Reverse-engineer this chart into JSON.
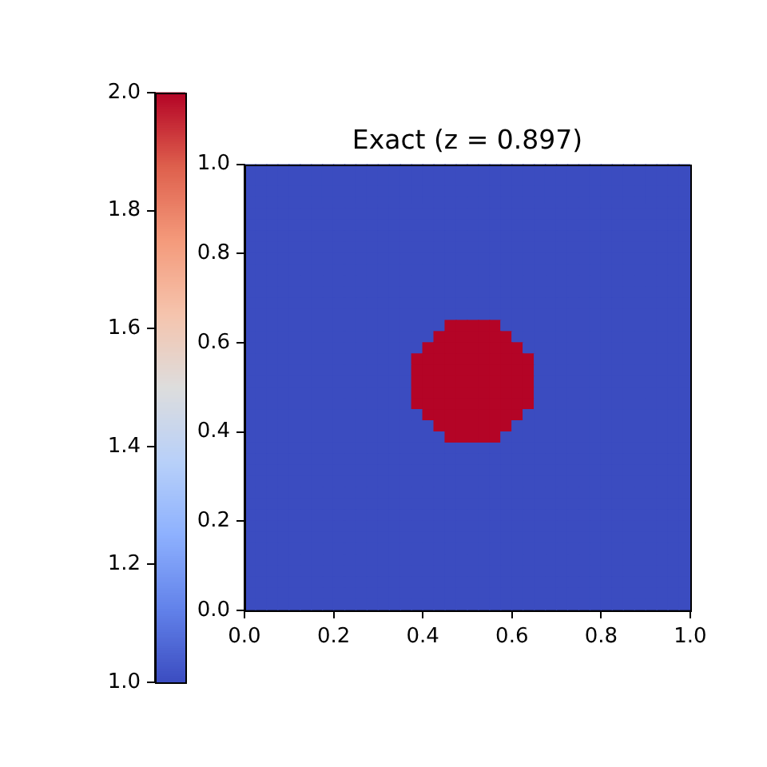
{
  "chart_data": {
    "type": "heatmap",
    "title": "Exact (z = 0.897)",
    "x": [
      0.0125,
      0.0375,
      0.0625,
      0.0875,
      0.1125,
      0.1375,
      0.1625,
      0.1875,
      0.2125,
      0.2375,
      0.2625,
      0.2875,
      0.3125,
      0.3375,
      0.3625,
      0.3875,
      0.4125,
      0.4375,
      0.4625,
      0.4875,
      0.5125,
      0.5375,
      0.5625,
      0.5875,
      0.6125,
      0.6375,
      0.6625,
      0.6875,
      0.7125,
      0.7375,
      0.7625,
      0.7875,
      0.8125,
      0.8375,
      0.8625,
      0.8875,
      0.9125,
      0.9375,
      0.9625,
      0.9875
    ],
    "xlim": [
      0,
      1
    ],
    "xticks": [
      {
        "value": 0,
        "label": "0.0"
      },
      0.2,
      0.4,
      0.6,
      0.8,
      {
        "value": 1,
        "label": "1.0"
      }
    ],
    "ylim": [
      0,
      1
    ],
    "yticks": [
      {
        "value": 0,
        "label": "0.0"
      },
      0.2,
      0.4,
      0.6,
      0.8,
      {
        "value": 1,
        "label": "1.0"
      }
    ],
    "clim": [
      1,
      2
    ],
    "cticks": [
      {
        "value": 1,
        "label": "1.0"
      },
      1.2,
      1.4,
      1.6,
      1.8,
      {
        "value": 2,
        "label": "2.0"
      }
    ],
    "cells": [
      [
        1,
        1,
        1,
        1,
        1,
        1,
        1,
        1,
        1,
        1,
        1,
        1,
        1,
        1,
        1,
        1,
        1,
        1,
        1,
        1,
        1,
        1,
        1,
        1,
        1,
        1,
        1,
        1,
        1,
        1,
        1,
        1,
        1,
        1,
        1,
        1,
        1,
        1,
        1,
        1
      ],
      [
        1,
        1,
        1,
        1,
        1,
        1,
        1,
        1,
        1,
        1,
        1,
        1,
        1,
        1,
        1,
        1,
        1,
        1,
        1,
        1,
        1,
        1,
        1,
        1,
        1,
        1,
        1,
        1,
        1,
        1,
        1,
        1,
        1,
        1,
        1,
        1,
        1,
        1,
        1,
        1
      ],
      [
        1,
        1,
        1,
        1,
        1,
        1,
        1,
        1,
        1,
        1,
        1,
        1,
        1,
        1,
        1,
        1,
        1,
        1,
        1,
        1,
        1,
        1,
        1,
        1,
        1,
        1,
        1,
        1,
        1,
        1,
        1,
        1,
        1,
        1,
        1,
        1,
        1,
        1,
        1,
        1
      ],
      [
        1,
        1,
        1,
        1,
        1,
        1,
        1,
        1,
        1,
        1,
        1,
        1,
        1,
        1,
        1,
        1,
        1,
        1,
        1,
        1,
        1,
        1,
        1,
        1,
        1,
        1,
        1,
        1,
        1,
        1,
        1,
        1,
        1,
        1,
        1,
        1,
        1,
        1,
        1,
        1
      ],
      [
        1,
        1,
        1,
        1,
        1,
        1,
        1,
        1,
        1,
        1,
        1,
        1,
        1,
        1,
        1,
        1,
        1,
        1,
        1,
        1,
        1,
        1,
        1,
        1,
        1,
        1,
        1,
        1,
        1,
        1,
        1,
        1,
        1,
        1,
        1,
        1,
        1,
        1,
        1,
        1
      ],
      [
        1,
        1,
        1,
        1,
        1,
        1,
        1,
        1,
        1,
        1,
        1,
        1,
        1,
        1,
        1,
        1,
        1,
        1,
        1,
        1,
        1,
        1,
        1,
        1,
        1,
        1,
        1,
        1,
        1,
        1,
        1,
        1,
        1,
        1,
        1,
        1,
        1,
        1,
        1,
        1
      ],
      [
        1,
        1,
        1,
        1,
        1,
        1,
        1,
        1,
        1,
        1,
        1,
        1,
        1,
        1,
        1,
        1,
        1,
        1,
        1,
        1,
        1,
        1,
        1,
        1,
        1,
        1,
        1,
        1,
        1,
        1,
        1,
        1,
        1,
        1,
        1,
        1,
        1,
        1,
        1,
        1
      ],
      [
        1,
        1,
        1,
        1,
        1,
        1,
        1,
        1,
        1,
        1,
        1,
        1,
        1,
        1,
        1,
        1,
        1,
        1,
        1,
        1,
        1,
        1,
        1,
        1,
        1,
        1,
        1,
        1,
        1,
        1,
        1,
        1,
        1,
        1,
        1,
        1,
        1,
        1,
        1,
        1
      ],
      [
        1,
        1,
        1,
        1,
        1,
        1,
        1,
        1,
        1,
        1,
        1,
        1,
        1,
        1,
        1,
        1,
        1,
        1,
        1,
        1,
        1,
        1,
        1,
        1,
        1,
        1,
        1,
        1,
        1,
        1,
        1,
        1,
        1,
        1,
        1,
        1,
        1,
        1,
        1,
        1
      ],
      [
        1,
        1,
        1,
        1,
        1,
        1,
        1,
        1,
        1,
        1,
        1,
        1,
        1,
        1,
        1,
        1,
        1,
        1,
        1,
        1,
        1,
        1,
        1,
        1,
        1,
        1,
        1,
        1,
        1,
        1,
        1,
        1,
        1,
        1,
        1,
        1,
        1,
        1,
        1,
        1
      ],
      [
        1,
        1,
        1,
        1,
        1,
        1,
        1,
        1,
        1,
        1,
        1,
        1,
        1,
        1,
        1,
        1,
        1,
        1,
        1,
        1,
        1,
        1,
        1,
        1,
        1,
        1,
        1,
        1,
        1,
        1,
        1,
        1,
        1,
        1,
        1,
        1,
        1,
        1,
        1,
        1
      ],
      [
        1,
        1,
        1,
        1,
        1,
        1,
        1,
        1,
        1,
        1,
        1,
        1,
        1,
        1,
        1,
        1,
        1,
        1,
        1,
        1,
        1,
        1,
        1,
        1,
        1,
        1,
        1,
        1,
        1,
        1,
        1,
        1,
        1,
        1,
        1,
        1,
        1,
        1,
        1,
        1
      ],
      [
        1,
        1,
        1,
        1,
        1,
        1,
        1,
        1,
        1,
        1,
        1,
        1,
        1,
        1,
        1,
        1,
        1,
        1,
        1,
        1,
        1,
        1,
        1,
        1,
        1,
        1,
        1,
        1,
        1,
        1,
        1,
        1,
        1,
        1,
        1,
        1,
        1,
        1,
        1,
        1
      ],
      [
        1,
        1,
        1,
        1,
        1,
        1,
        1,
        1,
        1,
        1,
        1,
        1,
        1,
        1,
        1,
        1,
        1,
        1,
        1,
        1,
        1,
        1,
        1,
        1,
        1,
        1,
        1,
        1,
        1,
        1,
        1,
        1,
        1,
        1,
        1,
        1,
        1,
        1,
        1,
        1
      ],
      [
        1,
        1,
        1,
        1,
        1,
        1,
        1,
        1,
        1,
        1,
        1,
        1,
        1,
        1,
        1,
        1,
        1,
        1,
        2,
        2,
        2,
        2,
        2,
        1,
        1,
        1,
        1,
        1,
        1,
        1,
        1,
        1,
        1,
        1,
        1,
        1,
        1,
        1,
        1,
        1
      ],
      [
        1,
        1,
        1,
        1,
        1,
        1,
        1,
        1,
        1,
        1,
        1,
        1,
        1,
        1,
        1,
        1,
        1,
        2,
        2,
        2,
        2,
        2,
        2,
        2,
        1,
        1,
        1,
        1,
        1,
        1,
        1,
        1,
        1,
        1,
        1,
        1,
        1,
        1,
        1,
        1
      ],
      [
        1,
        1,
        1,
        1,
        1,
        1,
        1,
        1,
        1,
        1,
        1,
        1,
        1,
        1,
        1,
        1,
        2,
        2,
        2,
        2,
        2,
        2,
        2,
        2,
        2,
        1,
        1,
        1,
        1,
        1,
        1,
        1,
        1,
        1,
        1,
        1,
        1,
        1,
        1,
        1
      ],
      [
        1,
        1,
        1,
        1,
        1,
        1,
        1,
        1,
        1,
        1,
        1,
        1,
        1,
        1,
        1,
        2,
        2,
        2,
        2,
        2,
        2,
        2,
        2,
        2,
        2,
        2,
        1,
        1,
        1,
        1,
        1,
        1,
        1,
        1,
        1,
        1,
        1,
        1,
        1,
        1
      ],
      [
        1,
        1,
        1,
        1,
        1,
        1,
        1,
        1,
        1,
        1,
        1,
        1,
        1,
        1,
        1,
        2,
        2,
        2,
        2,
        2,
        2,
        2,
        2,
        2,
        2,
        2,
        1,
        1,
        1,
        1,
        1,
        1,
        1,
        1,
        1,
        1,
        1,
        1,
        1,
        1
      ],
      [
        1,
        1,
        1,
        1,
        1,
        1,
        1,
        1,
        1,
        1,
        1,
        1,
        1,
        1,
        1,
        2,
        2,
        2,
        2,
        2,
        2,
        2,
        2,
        2,
        2,
        2,
        1,
        1,
        1,
        1,
        1,
        1,
        1,
        1,
        1,
        1,
        1,
        1,
        1,
        1
      ],
      [
        1,
        1,
        1,
        1,
        1,
        1,
        1,
        1,
        1,
        1,
        1,
        1,
        1,
        1,
        1,
        2,
        2,
        2,
        2,
        2,
        2,
        2,
        2,
        2,
        2,
        2,
        1,
        1,
        1,
        1,
        1,
        1,
        1,
        1,
        1,
        1,
        1,
        1,
        1,
        1
      ],
      [
        1,
        1,
        1,
        1,
        1,
        1,
        1,
        1,
        1,
        1,
        1,
        1,
        1,
        1,
        1,
        2,
        2,
        2,
        2,
        2,
        2,
        2,
        2,
        2,
        2,
        2,
        1,
        1,
        1,
        1,
        1,
        1,
        1,
        1,
        1,
        1,
        1,
        1,
        1,
        1
      ],
      [
        1,
        1,
        1,
        1,
        1,
        1,
        1,
        1,
        1,
        1,
        1,
        1,
        1,
        1,
        1,
        1,
        2,
        2,
        2,
        2,
        2,
        2,
        2,
        2,
        2,
        1,
        1,
        1,
        1,
        1,
        1,
        1,
        1,
        1,
        1,
        1,
        1,
        1,
        1,
        1
      ],
      [
        1,
        1,
        1,
        1,
        1,
        1,
        1,
        1,
        1,
        1,
        1,
        1,
        1,
        1,
        1,
        1,
        1,
        2,
        2,
        2,
        2,
        2,
        2,
        2,
        1,
        1,
        1,
        1,
        1,
        1,
        1,
        1,
        1,
        1,
        1,
        1,
        1,
        1,
        1,
        1
      ],
      [
        1,
        1,
        1,
        1,
        1,
        1,
        1,
        1,
        1,
        1,
        1,
        1,
        1,
        1,
        1,
        1,
        1,
        1,
        2,
        2,
        2,
        2,
        2,
        1,
        1,
        1,
        1,
        1,
        1,
        1,
        1,
        1,
        1,
        1,
        1,
        1,
        1,
        1,
        1,
        1
      ],
      [
        1,
        1,
        1,
        1,
        1,
        1,
        1,
        1,
        1,
        1,
        1,
        1,
        1,
        1,
        1,
        1,
        1,
        1,
        1,
        1,
        1,
        1,
        1,
        1,
        1,
        1,
        1,
        1,
        1,
        1,
        1,
        1,
        1,
        1,
        1,
        1,
        1,
        1,
        1,
        1
      ],
      [
        1,
        1,
        1,
        1,
        1,
        1,
        1,
        1,
        1,
        1,
        1,
        1,
        1,
        1,
        1,
        1,
        1,
        1,
        1,
        1,
        1,
        1,
        1,
        1,
        1,
        1,
        1,
        1,
        1,
        1,
        1,
        1,
        1,
        1,
        1,
        1,
        1,
        1,
        1,
        1
      ],
      [
        1,
        1,
        1,
        1,
        1,
        1,
        1,
        1,
        1,
        1,
        1,
        1,
        1,
        1,
        1,
        1,
        1,
        1,
        1,
        1,
        1,
        1,
        1,
        1,
        1,
        1,
        1,
        1,
        1,
        1,
        1,
        1,
        1,
        1,
        1,
        1,
        1,
        1,
        1,
        1
      ],
      [
        1,
        1,
        1,
        1,
        1,
        1,
        1,
        1,
        1,
        1,
        1,
        1,
        1,
        1,
        1,
        1,
        1,
        1,
        1,
        1,
        1,
        1,
        1,
        1,
        1,
        1,
        1,
        1,
        1,
        1,
        1,
        1,
        1,
        1,
        1,
        1,
        1,
        1,
        1,
        1
      ],
      [
        1,
        1,
        1,
        1,
        1,
        1,
        1,
        1,
        1,
        1,
        1,
        1,
        1,
        1,
        1,
        1,
        1,
        1,
        1,
        1,
        1,
        1,
        1,
        1,
        1,
        1,
        1,
        1,
        1,
        1,
        1,
        1,
        1,
        1,
        1,
        1,
        1,
        1,
        1,
        1
      ],
      [
        1,
        1,
        1,
        1,
        1,
        1,
        1,
        1,
        1,
        1,
        1,
        1,
        1,
        1,
        1,
        1,
        1,
        1,
        1,
        1,
        1,
        1,
        1,
        1,
        1,
        1,
        1,
        1,
        1,
        1,
        1,
        1,
        1,
        1,
        1,
        1,
        1,
        1,
        1,
        1
      ],
      [
        1,
        1,
        1,
        1,
        1,
        1,
        1,
        1,
        1,
        1,
        1,
        1,
        1,
        1,
        1,
        1,
        1,
        1,
        1,
        1,
        1,
        1,
        1,
        1,
        1,
        1,
        1,
        1,
        1,
        1,
        1,
        1,
        1,
        1,
        1,
        1,
        1,
        1,
        1,
        1
      ],
      [
        1,
        1,
        1,
        1,
        1,
        1,
        1,
        1,
        1,
        1,
        1,
        1,
        1,
        1,
        1,
        1,
        1,
        1,
        1,
        1,
        1,
        1,
        1,
        1,
        1,
        1,
        1,
        1,
        1,
        1,
        1,
        1,
        1,
        1,
        1,
        1,
        1,
        1,
        1,
        1
      ],
      [
        1,
        1,
        1,
        1,
        1,
        1,
        1,
        1,
        1,
        1,
        1,
        1,
        1,
        1,
        1,
        1,
        1,
        1,
        1,
        1,
        1,
        1,
        1,
        1,
        1,
        1,
        1,
        1,
        1,
        1,
        1,
        1,
        1,
        1,
        1,
        1,
        1,
        1,
        1,
        1
      ],
      [
        1,
        1,
        1,
        1,
        1,
        1,
        1,
        1,
        1,
        1,
        1,
        1,
        1,
        1,
        1,
        1,
        1,
        1,
        1,
        1,
        1,
        1,
        1,
        1,
        1,
        1,
        1,
        1,
        1,
        1,
        1,
        1,
        1,
        1,
        1,
        1,
        1,
        1,
        1,
        1
      ],
      [
        1,
        1,
        1,
        1,
        1,
        1,
        1,
        1,
        1,
        1,
        1,
        1,
        1,
        1,
        1,
        1,
        1,
        1,
        1,
        1,
        1,
        1,
        1,
        1,
        1,
        1,
        1,
        1,
        1,
        1,
        1,
        1,
        1,
        1,
        1,
        1,
        1,
        1,
        1,
        1
      ],
      [
        1,
        1,
        1,
        1,
        1,
        1,
        1,
        1,
        1,
        1,
        1,
        1,
        1,
        1,
        1,
        1,
        1,
        1,
        1,
        1,
        1,
        1,
        1,
        1,
        1,
        1,
        1,
        1,
        1,
        1,
        1,
        1,
        1,
        1,
        1,
        1,
        1,
        1,
        1,
        1
      ],
      [
        1,
        1,
        1,
        1,
        1,
        1,
        1,
        1,
        1,
        1,
        1,
        1,
        1,
        1,
        1,
        1,
        1,
        1,
        1,
        1,
        1,
        1,
        1,
        1,
        1,
        1,
        1,
        1,
        1,
        1,
        1,
        1,
        1,
        1,
        1,
        1,
        1,
        1,
        1,
        1
      ],
      [
        1,
        1,
        1,
        1,
        1,
        1,
        1,
        1,
        1,
        1,
        1,
        1,
        1,
        1,
        1,
        1,
        1,
        1,
        1,
        1,
        1,
        1,
        1,
        1,
        1,
        1,
        1,
        1,
        1,
        1,
        1,
        1,
        1,
        1,
        1,
        1,
        1,
        1,
        1,
        1
      ],
      [
        1,
        1,
        1,
        1,
        1,
        1,
        1,
        1,
        1,
        1,
        1,
        1,
        1,
        1,
        1,
        1,
        1,
        1,
        1,
        1,
        1,
        1,
        1,
        1,
        1,
        1,
        1,
        1,
        1,
        1,
        1,
        1,
        1,
        1,
        1,
        1,
        1,
        1,
        1,
        1
      ]
    ]
  }
}
